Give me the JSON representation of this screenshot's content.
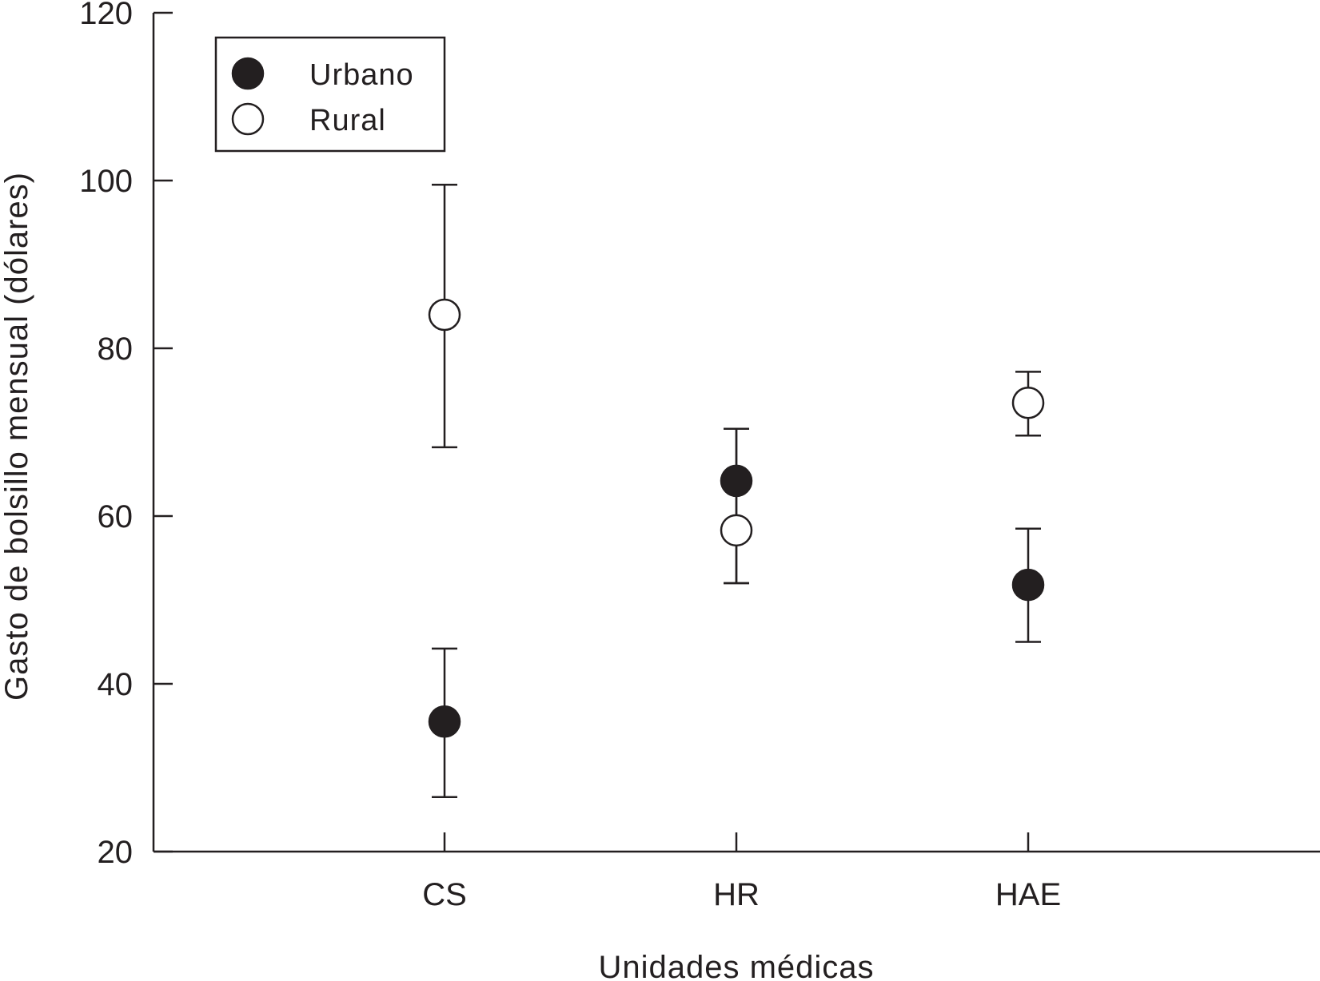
{
  "chart_data": {
    "type": "scatter",
    "title": "",
    "xlabel": "Unidades médicas",
    "ylabel": "Gasto de bolsillo mensual (dólares)",
    "categories": [
      "CS",
      "HR",
      "HAE"
    ],
    "ylim": [
      20,
      120
    ],
    "yticks": [
      20,
      40,
      60,
      80,
      100,
      120
    ],
    "grid": false,
    "legend_position": "top-left",
    "series": [
      {
        "name": "Urbano",
        "marker": "filled-circle",
        "color": "#231f20",
        "values": [
          35.5,
          64.2,
          51.8
        ],
        "error_low": [
          26.5,
          52.0,
          45.0
        ],
        "error_high": [
          44.2,
          70.4,
          58.5
        ]
      },
      {
        "name": "Rural",
        "marker": "open-circle",
        "color": "#231f20",
        "values": [
          84.0,
          58.3,
          73.5
        ],
        "error_low": [
          68.2,
          52.0,
          69.6
        ],
        "error_high": [
          99.5,
          70.4,
          77.2
        ]
      }
    ]
  }
}
